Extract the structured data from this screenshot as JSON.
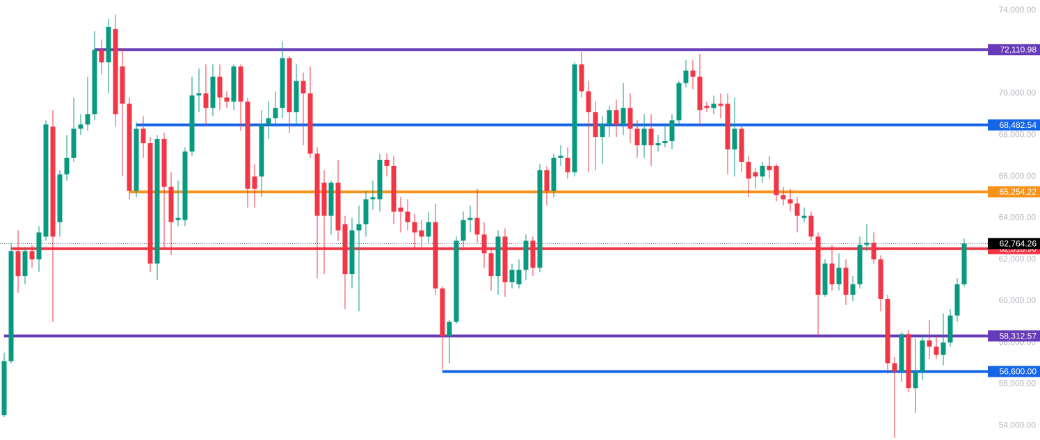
{
  "chart_data": {
    "type": "candlestick",
    "up_color": "#089981",
    "down_color": "#f23645",
    "open": [
      54500,
      57100,
      62400,
      61200,
      62400,
      62000,
      63100,
      68400,
      63800,
      66100,
      66900,
      68300,
      68500,
      69000,
      72100,
      71500,
      73100,
      71300,
      69500,
      65300,
      68300,
      67600,
      61800,
      67800,
      65500,
      63900,
      63900,
      67200,
      69900,
      70000,
      69300,
      70800,
      69800,
      69600,
      71300,
      69600,
      66000,
      66000,
      68500,
      68800,
      69300,
      71700,
      69100,
      70600,
      70000,
      67100,
      65700,
      64100,
      65700,
      63700,
      61300,
      63400,
      63700,
      64900,
      64900,
      66800,
      66500,
      64500,
      64300,
      63800,
      63400,
      63100,
      63800,
      60600,
      58300,
      59000,
      62900,
      63900,
      64000,
      63200,
      62300,
      61200,
      63100,
      60900,
      60800,
      61500,
      62900,
      61600,
      66300,
      65300,
      66900,
      66900,
      66200,
      71400,
      70100,
      69100,
      67900,
      68500,
      69200,
      68500,
      69300,
      68300,
      67500,
      68300,
      67500,
      67600,
      67700,
      68700,
      70500,
      71100,
      70800,
      69400,
      69300,
      69500,
      69500,
      67300,
      68300,
      66700,
      66200,
      66000,
      66500,
      66500,
      65100,
      64900,
      64700,
      64000,
      64100,
      63100,
      60300,
      61800,
      60800,
      61600,
      60300,
      60800,
      62700,
      62800,
      62000,
      60100,
      57000,
      56600,
      58400,
      55800,
      56600,
      58100,
      57800,
      57400,
      58000,
      59300,
      60800
    ],
    "high": [
      57500,
      62800,
      63400,
      62600,
      62700,
      63600,
      68700,
      69200,
      66300,
      68000,
      69800,
      69000,
      70800,
      73000,
      72600,
      73600,
      73800,
      72200,
      69800,
      68600,
      68900,
      67900,
      68000,
      68100,
      66200,
      65800,
      67400,
      70800,
      71200,
      71400,
      71400,
      71400,
      70100,
      71400,
      71400,
      69800,
      66600,
      69200,
      69600,
      70100,
      72500,
      71800,
      71400,
      71000,
      71300,
      67400,
      66300,
      65800,
      66800,
      64100,
      64000,
      64600,
      65300,
      65800,
      67100,
      67100,
      67000,
      65000,
      64900,
      64200,
      63900,
      64300,
      64700,
      60700,
      59100,
      63100,
      64300,
      64600,
      65400,
      63800,
      62500,
      63400,
      63500,
      61800,
      62000,
      63200,
      63100,
      66600,
      66500,
      67100,
      67500,
      67400,
      71500,
      72000,
      70600,
      69600,
      68900,
      69400,
      69700,
      70500,
      70000,
      68700,
      69000,
      69000,
      68000,
      68500,
      69000,
      70600,
      71600,
      71600,
      71900,
      69600,
      69900,
      70000,
      70000,
      69800,
      68500,
      67000,
      66400,
      66700,
      67000,
      66600,
      65500,
      65400,
      65000,
      64500,
      64300,
      63300,
      62000,
      62700,
      62300,
      62000,
      61200,
      63100,
      63700,
      63300,
      62200,
      60300,
      57300,
      58500,
      58600,
      58200,
      58400,
      59100,
      58300,
      59400,
      59600,
      61100,
      63000
    ],
    "low": [
      54400,
      57000,
      60400,
      60800,
      61600,
      61400,
      62900,
      59000,
      63100,
      65800,
      66700,
      68000,
      68200,
      68700,
      70900,
      70000,
      68400,
      66000,
      64900,
      65000,
      66900,
      61400,
      61000,
      62500,
      62200,
      63600,
      63600,
      67000,
      69100,
      68500,
      68900,
      69200,
      69300,
      69200,
      68200,
      64500,
      64500,
      65000,
      67800,
      68400,
      68800,
      68100,
      68500,
      67500,
      66900,
      61100,
      61300,
      63200,
      62900,
      59600,
      60600,
      59500,
      63100,
      64400,
      64300,
      66000,
      63700,
      63300,
      63400,
      62500,
      62600,
      62800,
      60300,
      56700,
      57000,
      58900,
      62600,
      63300,
      62800,
      61600,
      60500,
      60300,
      60200,
      60600,
      60600,
      61000,
      61200,
      61400,
      64600,
      65000,
      66500,
      65900,
      66000,
      69800,
      66200,
      66300,
      66600,
      67900,
      67900,
      68000,
      67600,
      66900,
      66900,
      66500,
      67200,
      67400,
      67300,
      68400,
      70300,
      70200,
      68400,
      69100,
      69000,
      68800,
      66100,
      66000,
      66200,
      65000,
      65400,
      65700,
      65900,
      64800,
      64600,
      64300,
      63300,
      63800,
      62900,
      58300,
      60200,
      60500,
      60500,
      59800,
      60000,
      60600,
      62400,
      61800,
      59500,
      56500,
      53400,
      56100,
      55600,
      54600,
      56200,
      57200,
      57200,
      56900,
      57800,
      59000,
      60700
    ],
    "close": [
      57100,
      62400,
      61200,
      62400,
      62000,
      63300,
      68500,
      63100,
      66100,
      66900,
      68300,
      68500,
      69000,
      72100,
      71500,
      73200,
      69000,
      69500,
      65300,
      68300,
      67600,
      61800,
      67800,
      65500,
      63800,
      64000,
      67200,
      69900,
      70000,
      69300,
      70800,
      69800,
      69600,
      71300,
      69600,
      65400,
      65400,
      68500,
      68800,
      69300,
      71700,
      69100,
      70600,
      70000,
      67100,
      64100,
      64100,
      65700,
      63400,
      61300,
      63400,
      63700,
      64900,
      65000,
      66800,
      66500,
      64300,
      64300,
      63800,
      63300,
      63100,
      63800,
      60600,
      58300,
      59000,
      62900,
      63900,
      64000,
      63200,
      62300,
      61200,
      63100,
      60900,
      61500,
      61500,
      62900,
      61600,
      66300,
      65300,
      66900,
      67000,
      66200,
      71400,
      70100,
      69100,
      67900,
      68500,
      69200,
      68500,
      69300,
      68300,
      67500,
      68300,
      67500,
      67600,
      67700,
      68700,
      70500,
      71100,
      70800,
      69200,
      69300,
      69500,
      69400,
      67300,
      68300,
      66700,
      65900,
      66000,
      66500,
      66300,
      65100,
      64900,
      64700,
      64100,
      64100,
      63100,
      60300,
      61800,
      60800,
      61600,
      60300,
      60800,
      62700,
      62800,
      62000,
      60100,
      57000,
      56600,
      58400,
      55800,
      56600,
      58100,
      57800,
      57400,
      58000,
      59300,
      60800,
      62764.26
    ],
    "ylim": [
      53300,
      74500
    ],
    "yticks": [
      {
        "value": 54000,
        "label": "54,000.00"
      },
      {
        "value": 56000,
        "label": "56,000.00"
      },
      {
        "value": 58000,
        "label": "58,000.00"
      },
      {
        "value": 60000,
        "label": "60,000.00"
      },
      {
        "value": 62000,
        "label": "62,000.00"
      },
      {
        "value": 64000,
        "label": "64,000.00"
      },
      {
        "value": 66000,
        "label": "66,000.00"
      },
      {
        "value": 68000,
        "label": "68,000.00"
      },
      {
        "value": 70000,
        "label": "70,000.00"
      },
      {
        "value": 72000,
        "label": "72,000.00"
      },
      {
        "value": 74000,
        "label": "74,000.00"
      }
    ],
    "levels": [
      {
        "value": 72110.98,
        "label": "72,110.98",
        "color": "#673ab7",
        "start_index": 13
      },
      {
        "value": 68482.54,
        "label": "68,482.54",
        "color": "#1565e8",
        "start_index": 19
      },
      {
        "value": 65254.22,
        "label": "65,254.22",
        "color": "#f7931a",
        "start_index": 18
      },
      {
        "value": 62518.9,
        "label": "62,518.90",
        "color": "#f23645",
        "start_index": 1
      },
      {
        "value": 58312.57,
        "label": "58,312.57",
        "color": "#673ab7",
        "start_index": 0
      },
      {
        "value": 56600.0,
        "label": "56,600.00",
        "color": "#1565e8",
        "start_index": 63
      }
    ],
    "last_price": {
      "value": 62764.26,
      "label": "62,764.26",
      "color": "#000000"
    }
  }
}
